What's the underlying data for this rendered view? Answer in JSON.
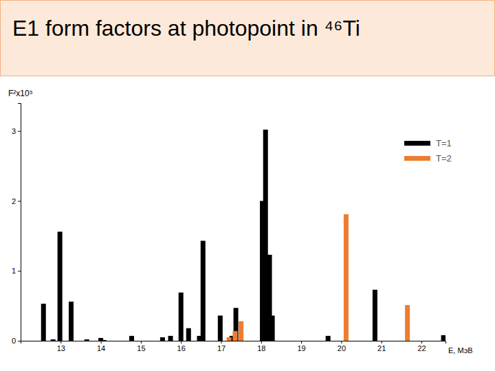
{
  "chart_data": {
    "type": "bar",
    "title": "E1 form factors at photopoint in ⁴⁶Ti",
    "y_label": "F²x10⁵",
    "x_label": "E, МэВ",
    "xlim": [
      12,
      22.6
    ],
    "xticks": [
      13,
      14,
      15,
      16,
      17,
      18,
      19,
      20,
      21,
      22
    ],
    "ylim": [
      0,
      3.4
    ],
    "yticks": [
      0,
      1,
      2,
      3
    ],
    "grid": false,
    "legend": "upper right",
    "series": [
      {
        "name": "T=1",
        "color": "#000000",
        "x": [
          12.57,
          12.81,
          12.98,
          13.26,
          13.65,
          14.0,
          14.08,
          14.77,
          15.54,
          15.74,
          16.0,
          16.19,
          16.46,
          16.55,
          16.98,
          17.27,
          17.37,
          18.03,
          18.11,
          18.21,
          18.28,
          19.67,
          20.84,
          22.55
        ],
        "values": [
          0.53,
          0.02,
          1.56,
          0.56,
          0.02,
          0.04,
          0.01,
          0.07,
          0.05,
          0.07,
          0.69,
          0.18,
          0.07,
          1.43,
          0.36,
          0.07,
          0.47,
          2.0,
          3.02,
          1.23,
          0.36,
          0.07,
          0.73,
          0.08
        ]
      },
      {
        "name": "T=2",
        "color": "#ed7d31",
        "x": [
          17.2,
          17.35,
          17.5,
          20.12,
          21.65
        ],
        "values": [
          0.05,
          0.14,
          0.28,
          1.81,
          0.51
        ]
      }
    ]
  }
}
